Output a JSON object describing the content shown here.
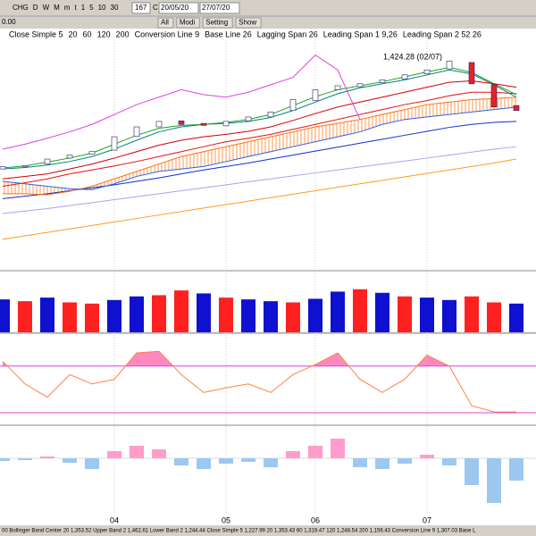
{
  "toolbar": {
    "buttons": [
      "CHG",
      "D",
      "W",
      "M",
      "m",
      "t",
      "1",
      "5",
      "10",
      "30"
    ],
    "count": "167",
    "mode": "C",
    "from": "20/05/20",
    "to": "27/07/20",
    "actions": [
      "All",
      "Modi",
      "Setting",
      "Show"
    ],
    "value": "0.00"
  },
  "status_bar": "00 Bollinger Band Center 20 1,353.52  Upper Band 2 1,462.61  Lower Band 2 1,244.44  Close Simple 5 1,227.99  20 1,353.43  60 1,319.47  120 1,248.54  200 1,156.43  Conversion Line 9 1,307.03  Base L",
  "chart_data": [
    {
      "type": "candlestick",
      "annotation": "1,424.28 (02/07)",
      "ylim": [
        1000,
        1460
      ],
      "up_color": "#ffffff",
      "down_color": "#e8202a",
      "outline_color": "#202060",
      "cloud_color": "#ff8020",
      "open": [
        1200,
        1205,
        1210,
        1222,
        1230,
        1238,
        1266,
        1285,
        1297,
        1292,
        1287,
        1297,
        1305,
        1318,
        1338,
        1360,
        1366,
        1374,
        1382,
        1392,
        1402,
        1415,
        1370,
        1328
      ],
      "close": [
        1205,
        1207,
        1220,
        1228,
        1235,
        1265,
        1285,
        1296,
        1290,
        1288,
        1296,
        1305,
        1315,
        1340,
        1360,
        1368,
        1372,
        1380,
        1390,
        1400,
        1418,
        1372,
        1325,
        1318
      ],
      "series": [
        {
          "name": "Close Simple 5",
          "color": "#008080",
          "values": [
            1200,
            1203,
            1208,
            1215,
            1225,
            1240,
            1258,
            1275,
            1285,
            1290,
            1292,
            1296,
            1304,
            1318,
            1335,
            1352,
            1364,
            1372,
            1380,
            1390,
            1400,
            1392,
            1370,
            1345
          ]
        },
        {
          "name": "20",
          "color": "#e81010",
          "values": [
            1165,
            1172,
            1180,
            1190,
            1198,
            1206,
            1215,
            1225,
            1235,
            1245,
            1255,
            1262,
            1270,
            1280,
            1290,
            1300,
            1310,
            1320,
            1330,
            1338,
            1348,
            1355,
            1355,
            1352
          ]
        },
        {
          "name": "60",
          "color": "#1030d0",
          "values": [
            1140,
            1145,
            1150,
            1156,
            1162,
            1168,
            1175,
            1182,
            1190,
            1198,
            1205,
            1212,
            1220,
            1228,
            1236,
            1244,
            1252,
            1260,
            1268,
            1276,
            1284,
            1290,
            1294,
            1296
          ]
        },
        {
          "name": "120",
          "color": "#b0a0f0",
          "values": [
            1110,
            1115,
            1120,
            1126,
            1132,
            1138,
            1144,
            1150,
            1156,
            1162,
            1168,
            1174,
            1180,
            1186,
            1192,
            1198,
            1204,
            1210,
            1216,
            1222,
            1228,
            1234,
            1240,
            1245
          ]
        },
        {
          "name": "200",
          "color": "#ff9a20",
          "values": [
            1058,
            1065,
            1072,
            1079,
            1086,
            1093,
            1100,
            1107,
            1114,
            1121,
            1128,
            1135,
            1142,
            1149,
            1156,
            1163,
            1170,
            1177,
            1184,
            1191,
            1198,
            1205,
            1212,
            1220
          ]
        },
        {
          "name": "Conversion Line 9",
          "color": "#20a020",
          "values": [
            1202,
            1206,
            1214,
            1222,
            1232,
            1250,
            1268,
            1282,
            1288,
            1290,
            1294,
            1300,
            1310,
            1328,
            1346,
            1360,
            1368,
            1376,
            1386,
            1396,
            1405,
            1395,
            1372,
            1350
          ]
        },
        {
          "name": "Base Line 26",
          "color": "#d00000",
          "values": [
            1180,
            1185,
            1190,
            1200,
            1210,
            1222,
            1235,
            1248,
            1258,
            1265,
            1270,
            1276,
            1285,
            1298,
            1312,
            1325,
            1335,
            1345,
            1355,
            1365,
            1375,
            1378,
            1372,
            1365
          ]
        },
        {
          "name": "Lagging Span 26",
          "color": "#e040e0",
          "values": [
            1240,
            1250,
            1262,
            1275,
            1290,
            1310,
            1330,
            1345,
            1360,
            1350,
            1345,
            1355,
            1370,
            1385,
            1430,
            1400,
            1300,
            null,
            null,
            null,
            null,
            null,
            null,
            null
          ]
        },
        {
          "name": "Leading Span 1 9,26",
          "color": "#ff7010",
          "values": [
            1150,
            1150,
            1148,
            1155,
            1165,
            1180,
            1195,
            1210,
            1225,
            1235,
            1245,
            1255,
            1265,
            1275,
            1285,
            1292,
            1300,
            1310,
            1320,
            1330,
            1335,
            1340,
            1342,
            1345
          ]
        },
        {
          "name": "Leading Span 2 52 26",
          "color": "#3060e0",
          "values": [
            1175,
            1170,
            1165,
            1160,
            1158,
            1170,
            1185,
            1195,
            1200,
            1205,
            1215,
            1225,
            1235,
            1245,
            1255,
            1265,
            1275,
            1290,
            1300,
            1305,
            1310,
            1315,
            1320,
            1325
          ]
        }
      ]
    },
    {
      "type": "bar",
      "ylim": [
        0,
        100
      ],
      "values": [
        55,
        52,
        58,
        50,
        48,
        54,
        60,
        62,
        70,
        65,
        58,
        55,
        52,
        50,
        56,
        68,
        72,
        66,
        60,
        58,
        54,
        60,
        50,
        48
      ],
      "colors": [
        "#1010d0",
        "#ff2020",
        "#1010d0",
        "#ff2020",
        "#ff2020",
        "#1010d0",
        "#1010d0",
        "#ff2020",
        "#ff2020",
        "#1010d0",
        "#ff2020",
        "#1010d0",
        "#1010d0",
        "#ff2020",
        "#1010d0",
        "#1010d0",
        "#ff2020",
        "#1010d0",
        "#ff2020",
        "#1010d0",
        "#1010d0",
        "#ff2020",
        "#ff2020",
        "#1010d0"
      ]
    },
    {
      "type": "line",
      "ylim": [
        5,
        120
      ],
      "color": "#ff8040",
      "levels": [
        80,
        20
      ],
      "level_color": "#e040e0",
      "level_fills": [
        "#ff88c0",
        "#7799ff"
      ],
      "values": [
        86,
        57,
        40,
        69,
        57,
        63,
        97,
        99,
        69,
        46,
        52,
        57,
        46,
        69,
        82,
        97,
        63,
        46,
        63,
        94,
        80,
        29,
        21,
        21
      ]
    },
    {
      "type": "bar",
      "ylim": [
        -62,
        35
      ],
      "positive_color": "#ff9ccc",
      "negative_color": "#9cc8f0",
      "categories": [
        null,
        null,
        null,
        null,
        null,
        "04",
        null,
        null,
        null,
        null,
        "05",
        null,
        null,
        null,
        "06",
        null,
        null,
        null,
        null,
        "07",
        null,
        null,
        null,
        null
      ],
      "values": [
        -3,
        -2,
        2,
        -5,
        -12,
        8,
        14,
        10,
        -8,
        -12,
        -6,
        -4,
        -10,
        8,
        14,
        22,
        -10,
        -12,
        -6,
        4,
        -8,
        -30,
        -50,
        -25
      ]
    }
  ]
}
